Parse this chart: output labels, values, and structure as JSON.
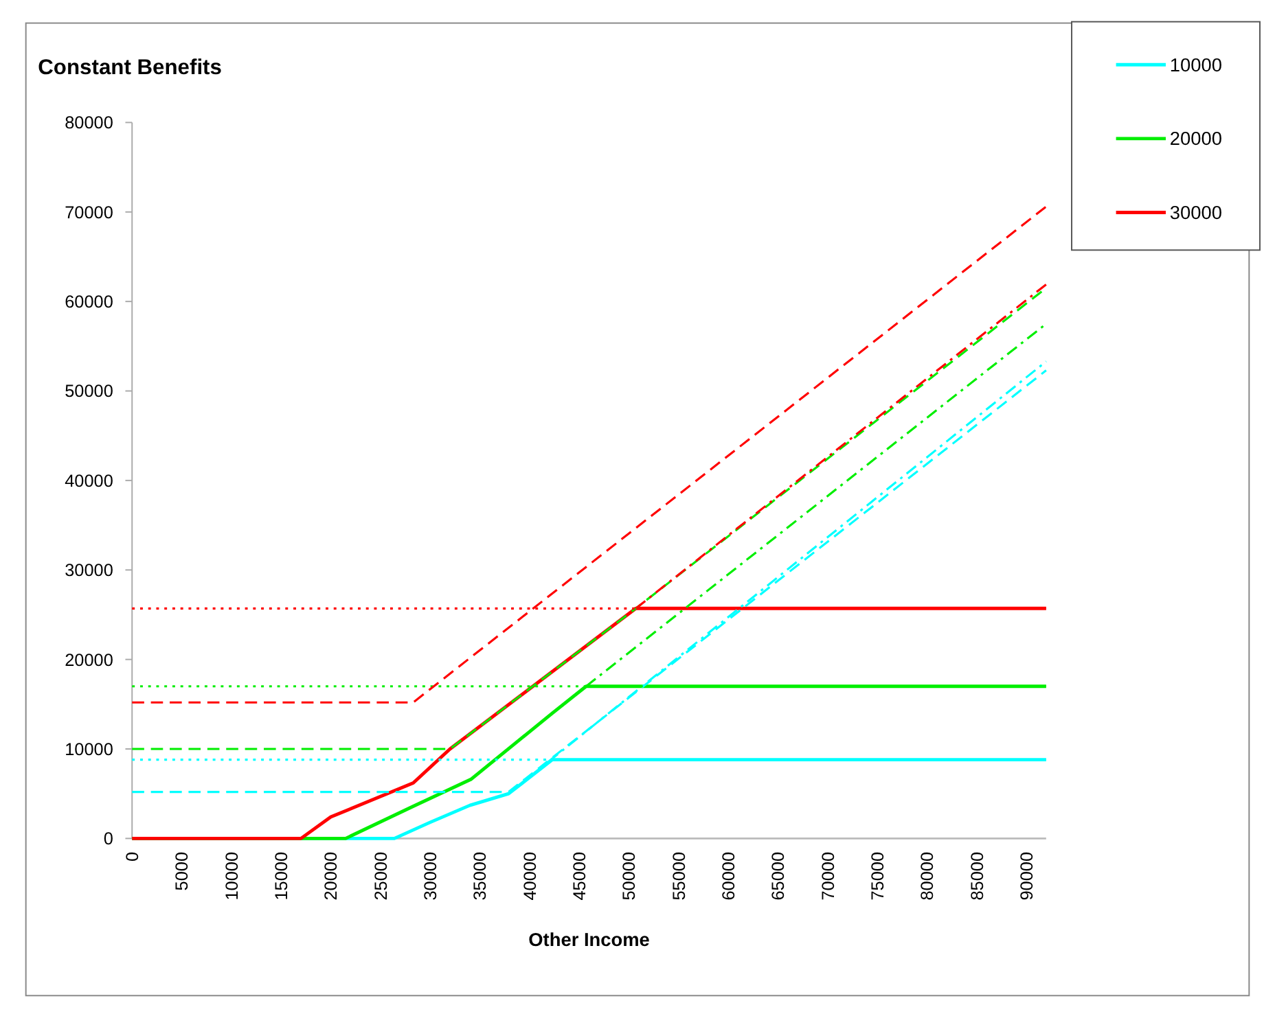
{
  "chart_data": {
    "type": "line",
    "title": "Constant Benefits",
    "xlabel": "Other Income",
    "xlim": [
      0,
      92000
    ],
    "xticks": [
      0,
      5000,
      10000,
      15000,
      20000,
      25000,
      30000,
      35000,
      40000,
      45000,
      50000,
      55000,
      60000,
      65000,
      70000,
      75000,
      80000,
      85000,
      90000
    ],
    "ylim": [
      0,
      80000
    ],
    "yticks": [
      0,
      10000,
      20000,
      30000,
      40000,
      50000,
      60000,
      70000,
      80000
    ],
    "grid": false,
    "legend": "top right",
    "marker": "none",
    "series": [
      {
        "name": "10000",
        "color": "#00ffff",
        "line_style": "solid",
        "x": [
          0,
          26400,
          30000,
          34000,
          37900,
          42300,
          92000
        ],
        "values": [
          0,
          0,
          1800,
          3700,
          5000,
          8800,
          8800
        ]
      },
      {
        "name": "20000",
        "color": "#00ee00",
        "line_style": "solid",
        "x": [
          0,
          21500,
          28300,
          34100,
          42300,
          45700,
          92000
        ],
        "values": [
          0,
          0,
          3600,
          6600,
          14000,
          17000,
          17000
        ]
      },
      {
        "name": "30000",
        "color": "#ff0000",
        "line_style": "solid",
        "x": [
          0,
          17000,
          20000,
          28300,
          32000,
          50700,
          92000
        ],
        "values": [
          0,
          0,
          2400,
          6200,
          10000,
          25700,
          25700
        ]
      },
      {
        "color": "#00ffff",
        "line_style": "dashed",
        "x": [
          0,
          37900,
          92000
        ],
        "values": [
          5200,
          5200,
          52300
        ]
      },
      {
        "color": "#00ffff",
        "line_style": "dotted",
        "x": [
          0,
          92000
        ],
        "values": [
          8800,
          8800
        ]
      },
      {
        "color": "#00ffff",
        "line_style": "dashdot",
        "x": [
          37900,
          92000
        ],
        "values": [
          5000,
          53300
        ]
      },
      {
        "color": "#00ee00",
        "line_style": "dashed",
        "x": [
          0,
          32000,
          50700,
          92000
        ],
        "values": [
          10000,
          10000,
          25700,
          61500
        ]
      },
      {
        "color": "#00ee00",
        "line_style": "dotted",
        "x": [
          0,
          92000
        ],
        "values": [
          17000,
          17000
        ]
      },
      {
        "color": "#00ee00",
        "line_style": "dashdot",
        "x": [
          45700,
          92000
        ],
        "values": [
          17000,
          57500
        ]
      },
      {
        "color": "#ff0000",
        "line_style": "dashed",
        "x": [
          0,
          28300,
          92000
        ],
        "values": [
          15200,
          15200,
          70600
        ]
      },
      {
        "color": "#ff0000",
        "line_style": "dotted",
        "x": [
          0,
          92000
        ],
        "values": [
          25700,
          25700
        ]
      },
      {
        "color": "#ff0000",
        "line_style": "dashdot",
        "x": [
          50700,
          92000
        ],
        "values": [
          25700,
          61900
        ]
      }
    ]
  }
}
